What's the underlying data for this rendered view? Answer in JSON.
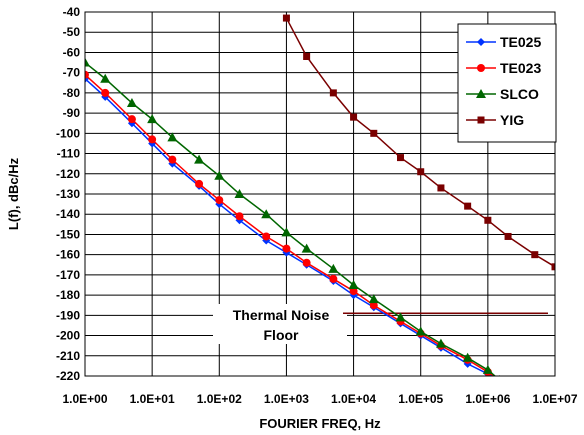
{
  "chart_data": {
    "type": "line",
    "xlabel": "FOURIER FREQ, Hz",
    "ylabel": "L(f), dBc/Hz",
    "x_scale": "log",
    "xlim": [
      1,
      10000000
    ],
    "ylim": [
      -220,
      -40
    ],
    "x_tick_values": [
      1,
      10,
      100,
      1000,
      10000,
      100000,
      1000000,
      10000000
    ],
    "x_tick_labels": [
      "1.0E+00",
      "1.0E+01",
      "1.0E+02",
      "1.0E+03",
      "1.0E+04",
      "1.0E+05",
      "1.0E+06",
      "1.0E+07"
    ],
    "y_ticks": [
      -40,
      -50,
      -60,
      -70,
      -80,
      -90,
      -100,
      -110,
      -120,
      -130,
      -140,
      -150,
      -160,
      -170,
      -180,
      -190,
      -200,
      -210,
      -220
    ],
    "grid": true,
    "legend_position": "top-right",
    "series": [
      {
        "name": "TE025",
        "color": "#0033ff",
        "marker": "diamond",
        "points": [
          [
            1,
            -73
          ],
          [
            2,
            -82
          ],
          [
            5,
            -95
          ],
          [
            10,
            -105
          ],
          [
            20,
            -115
          ],
          [
            50,
            -126
          ],
          [
            100,
            -135
          ],
          [
            200,
            -143
          ],
          [
            500,
            -153
          ],
          [
            1000,
            -159
          ],
          [
            2000,
            -165
          ],
          [
            5000,
            -173
          ],
          [
            10000,
            -180
          ],
          [
            20000,
            -186
          ],
          [
            50000,
            -194
          ],
          [
            100000,
            -200
          ],
          [
            200000,
            -206
          ],
          [
            500000,
            -214
          ],
          [
            1000000,
            -219
          ],
          [
            1500000,
            -222
          ]
        ]
      },
      {
        "name": "TE023",
        "color": "#ff0000",
        "marker": "circle",
        "points": [
          [
            1,
            -71
          ],
          [
            2,
            -80
          ],
          [
            5,
            -93
          ],
          [
            10,
            -103
          ],
          [
            20,
            -113
          ],
          [
            50,
            -125
          ],
          [
            100,
            -133
          ],
          [
            200,
            -141
          ],
          [
            500,
            -151
          ],
          [
            1000,
            -157
          ],
          [
            2000,
            -164
          ],
          [
            5000,
            -172
          ],
          [
            10000,
            -178
          ],
          [
            20000,
            -185
          ],
          [
            50000,
            -193
          ],
          [
            100000,
            -199
          ],
          [
            200000,
            -205
          ],
          [
            500000,
            -212
          ],
          [
            1000000,
            -218
          ],
          [
            1500000,
            -222
          ]
        ]
      },
      {
        "name": "SLCO",
        "color": "#006600",
        "marker": "triangle",
        "points": [
          [
            1,
            -65
          ],
          [
            2,
            -73
          ],
          [
            5,
            -85
          ],
          [
            10,
            -93
          ],
          [
            20,
            -102
          ],
          [
            50,
            -113
          ],
          [
            100,
            -121
          ],
          [
            200,
            -130
          ],
          [
            500,
            -140
          ],
          [
            1000,
            -149
          ],
          [
            2000,
            -157
          ],
          [
            5000,
            -167
          ],
          [
            10000,
            -175
          ],
          [
            20000,
            -182
          ],
          [
            50000,
            -191
          ],
          [
            100000,
            -198
          ],
          [
            200000,
            -204
          ],
          [
            500000,
            -211
          ],
          [
            1000000,
            -217
          ],
          [
            1500000,
            -222
          ]
        ]
      },
      {
        "name": "YIG",
        "color": "#7a0000",
        "marker": "square",
        "points": [
          [
            1000,
            -43
          ],
          [
            2000,
            -62
          ],
          [
            5000,
            -80
          ],
          [
            10000,
            -92
          ],
          [
            20000,
            -100
          ],
          [
            50000,
            -112
          ],
          [
            100000,
            -119
          ],
          [
            200000,
            -127
          ],
          [
            500000,
            -136
          ],
          [
            1000000,
            -143
          ],
          [
            2000000,
            -151
          ],
          [
            5000000,
            -160
          ],
          [
            10000000,
            -166
          ]
        ]
      }
    ],
    "annotation": {
      "text_line1": "Thermal Noise",
      "text_line2": "Floor",
      "level": -189,
      "x_start": 1000,
      "x_end": 10000000,
      "color": "#7a0000"
    }
  }
}
